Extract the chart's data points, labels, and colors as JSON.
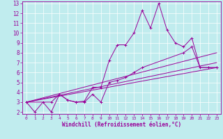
{
  "xlabel": "Windchill (Refroidissement éolien,°C)",
  "bg_color": "#c0ecee",
  "line_color": "#990099",
  "grid_color": "#ffffff",
  "xlim": [
    -0.5,
    23.5
  ],
  "ylim": [
    1.8,
    13.2
  ],
  "xticks": [
    0,
    1,
    2,
    3,
    4,
    5,
    6,
    7,
    8,
    9,
    10,
    11,
    12,
    13,
    14,
    15,
    16,
    17,
    18,
    19,
    20,
    21,
    22,
    23
  ],
  "yticks": [
    2,
    3,
    4,
    5,
    6,
    7,
    8,
    9,
    10,
    11,
    12,
    13
  ],
  "series": [
    {
      "x": [
        0,
        1,
        2,
        3,
        4,
        5,
        6,
        7,
        8,
        9,
        10,
        11,
        12,
        13,
        14,
        15,
        16,
        17,
        18,
        19,
        20,
        21,
        22,
        23
      ],
      "y": [
        3.0,
        2.0,
        3.0,
        2.0,
        3.8,
        3.2,
        3.0,
        3.1,
        4.5,
        4.5,
        7.2,
        8.8,
        8.8,
        10.0,
        12.3,
        10.5,
        13.0,
        10.3,
        9.0,
        8.6,
        9.5,
        6.5,
        6.5,
        6.5
      ],
      "marker": "+"
    },
    {
      "x": [
        0,
        3,
        4,
        5,
        6,
        7,
        8,
        9,
        10,
        11,
        12,
        13,
        14,
        19,
        20,
        21,
        22,
        23
      ],
      "y": [
        3.0,
        3.0,
        3.8,
        3.2,
        3.0,
        3.0,
        3.8,
        3.0,
        5.0,
        5.2,
        5.5,
        6.0,
        6.5,
        8.0,
        8.6,
        6.5,
        6.5,
        6.5
      ],
      "marker": "+"
    },
    {
      "x": [
        0,
        23
      ],
      "y": [
        3.0,
        6.5
      ],
      "marker": null
    },
    {
      "x": [
        0,
        23
      ],
      "y": [
        3.0,
        8.0
      ],
      "marker": null
    },
    {
      "x": [
        0,
        23
      ],
      "y": [
        3.0,
        7.0
      ],
      "marker": null
    }
  ]
}
